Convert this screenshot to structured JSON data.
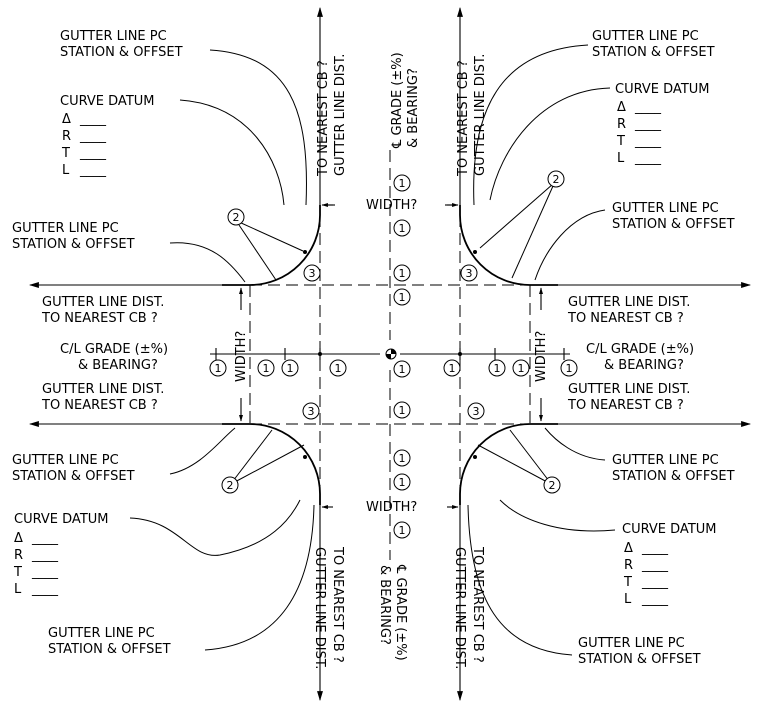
{
  "labels": {
    "gutter_pc_1": "GUTTER LINE PC",
    "gutter_pc_2": "STATION & OFFSET",
    "curve_datum": "CURVE DATUM",
    "delta": "Δ",
    "r": "R",
    "t": "T",
    "l": "L",
    "blank": "____",
    "gutter_dist_1": "GUTTER LINE DIST.",
    "gutter_dist_2": "TO NEAREST CB ?",
    "cl_grade_1": "C/L GRADE (±%)",
    "cl_grade_2": "& BEARING?",
    "v_cl_grade_1": "℄ GRADE (±%)",
    "v_cl_grade_2": "& BEARING?",
    "width": "WIDTH?"
  },
  "bubbles": {
    "one": "1",
    "two": "2",
    "three": "3"
  }
}
